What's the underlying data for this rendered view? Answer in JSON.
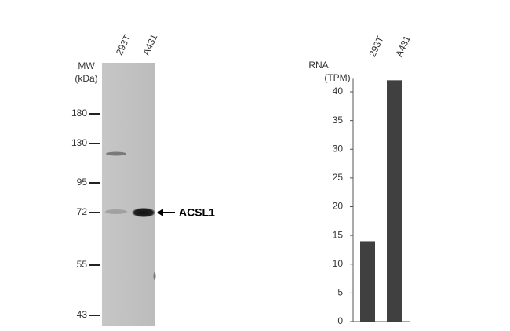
{
  "blot": {
    "lanes": [
      "293T",
      "A431"
    ],
    "mw_label": [
      "MW",
      "(kDa)"
    ],
    "markers": [
      "180",
      "130",
      "95",
      "72",
      "55",
      "43"
    ],
    "band_label": "ACSL1"
  },
  "chart_data": {
    "type": "bar",
    "ylabel": [
      "RNA",
      "(TPM)"
    ],
    "categories": [
      "293T",
      "A431"
    ],
    "values": [
      14,
      42
    ],
    "color": "#404040",
    "ylim": [
      0,
      42
    ],
    "yticks": [
      0,
      5,
      10,
      15,
      20,
      25,
      30,
      35,
      40
    ],
    "grid": false
  }
}
